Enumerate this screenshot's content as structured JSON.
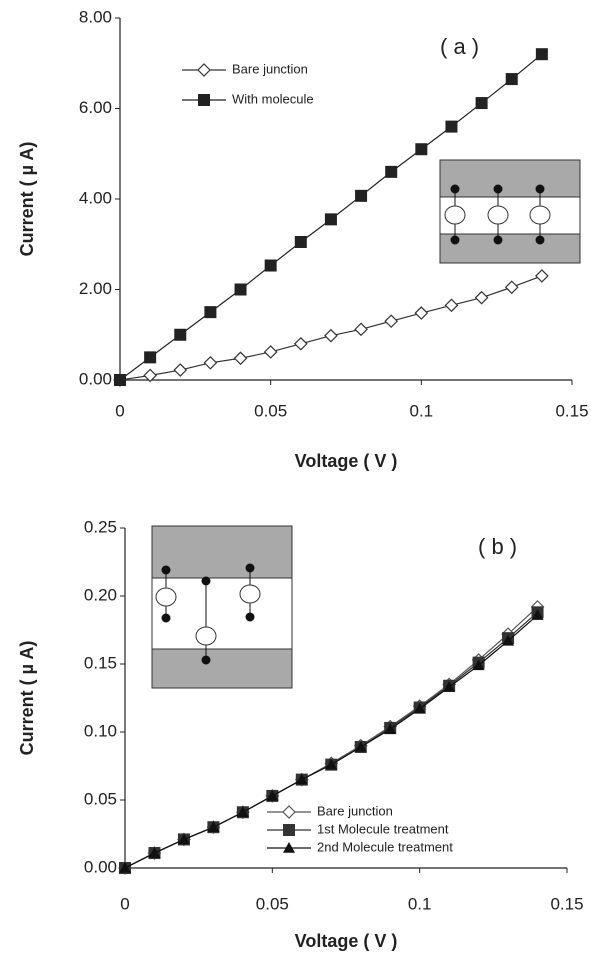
{
  "chart_data": [
    {
      "type": "line",
      "annotation": "( a )",
      "xlabel": "Voltage ( V )",
      "ylabel": "Current ( µ A)",
      "x": [
        0,
        0.01,
        0.02,
        0.03,
        0.04,
        0.05,
        0.06,
        0.07,
        0.08,
        0.09,
        0.1,
        0.11,
        0.12,
        0.13,
        0.14
      ],
      "series": [
        {
          "name": "Bare junction",
          "color": "#333333",
          "marker": "diamond",
          "values": [
            0,
            0.1,
            0.22,
            0.38,
            0.48,
            0.62,
            0.8,
            0.98,
            1.12,
            1.3,
            1.48,
            1.65,
            1.82,
            2.05,
            2.3
          ]
        },
        {
          "name": "With molecule",
          "color": "#222222",
          "marker": "square",
          "values": [
            0,
            0.5,
            1.0,
            1.5,
            2.0,
            2.53,
            3.05,
            3.55,
            4.07,
            4.6,
            5.1,
            5.6,
            6.12,
            6.65,
            7.2
          ]
        }
      ],
      "xlim": [
        0,
        0.15
      ],
      "xticks": [
        0,
        0.05,
        0.1,
        0.15
      ],
      "ylim": [
        0,
        8
      ],
      "yticks": [
        {
          "value": 0,
          "label": "0.00"
        },
        {
          "value": 2,
          "label": "2.00"
        },
        {
          "value": 4,
          "label": "4.00"
        },
        {
          "value": 6,
          "label": "6.00"
        },
        {
          "value": 8,
          "label": "8.00"
        }
      ],
      "legend": "upper left",
      "grid": false
    },
    {
      "type": "line",
      "annotation": "( b )",
      "xlabel": "Voltage ( V )",
      "ylabel": "Current ( µ A)",
      "x": [
        0,
        0.01,
        0.02,
        0.03,
        0.04,
        0.05,
        0.06,
        0.07,
        0.08,
        0.09,
        0.1,
        0.11,
        0.12,
        0.13,
        0.14
      ],
      "series": [
        {
          "name": "Bare junction",
          "color": "#555555",
          "marker": "diamond",
          "values": [
            0,
            0.011,
            0.021,
            0.03,
            0.041,
            0.053,
            0.065,
            0.077,
            0.09,
            0.104,
            0.119,
            0.135,
            0.153,
            0.172,
            0.192
          ]
        },
        {
          "name": "1st Molecule treatment",
          "color": "#333333",
          "marker": "square",
          "values": [
            0,
            0.011,
            0.021,
            0.03,
            0.041,
            0.053,
            0.065,
            0.076,
            0.089,
            0.103,
            0.118,
            0.134,
            0.151,
            0.169,
            0.188
          ]
        },
        {
          "name": "2nd Molecule treatment",
          "color": "#111111",
          "marker": "triangle",
          "values": [
            0,
            0.011,
            0.021,
            0.03,
            0.041,
            0.053,
            0.065,
            0.076,
            0.089,
            0.102,
            0.117,
            0.133,
            0.149,
            0.167,
            0.186
          ]
        }
      ],
      "xlim": [
        0,
        0.15
      ],
      "xticks": [
        0,
        0.05,
        0.1,
        0.15
      ],
      "ylim": [
        0,
        0.25
      ],
      "yticks": [
        {
          "value": 0,
          "label": "0.00"
        },
        {
          "value": 0.05,
          "label": "0.05"
        },
        {
          "value": 0.1,
          "label": "0.10"
        },
        {
          "value": 0.15,
          "label": "0.15"
        },
        {
          "value": 0.2,
          "label": "0.20"
        },
        {
          "value": 0.25,
          "label": "0.25"
        }
      ],
      "legend": "lower right",
      "grid": false
    }
  ]
}
